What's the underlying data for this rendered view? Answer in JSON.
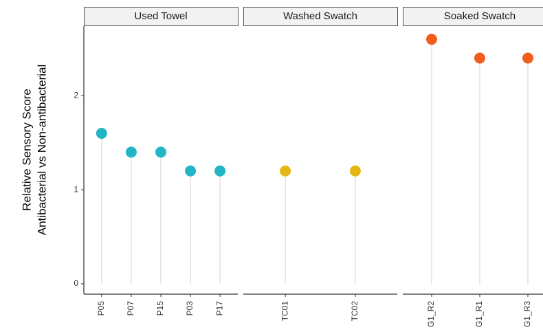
{
  "chart_data": {
    "type": "lollipop",
    "y_label": [
      "Relative Sensory Score",
      "Antibacterial vs Non-antibacterial"
    ],
    "ylim": [
      -0.11,
      2.74
    ],
    "yticks": [
      0,
      1,
      2
    ],
    "facets": [
      {
        "name": "Used Towel",
        "color": "#22b5c5",
        "categories": [
          "P05",
          "P07",
          "P15",
          "P03",
          "P17"
        ],
        "values": [
          1.6,
          1.4,
          1.4,
          1.2,
          1.2
        ]
      },
      {
        "name": "Washed Swatch",
        "color": "#e4b714",
        "categories": [
          "TC01",
          "TC02"
        ],
        "values": [
          1.2,
          1.2
        ]
      },
      {
        "name": "Soaked Swatch",
        "color": "#f25c1c",
        "categories": [
          "G1_R2",
          "G1_R1",
          "G1_R3"
        ],
        "values": [
          2.6,
          2.4,
          2.4
        ]
      }
    ]
  }
}
